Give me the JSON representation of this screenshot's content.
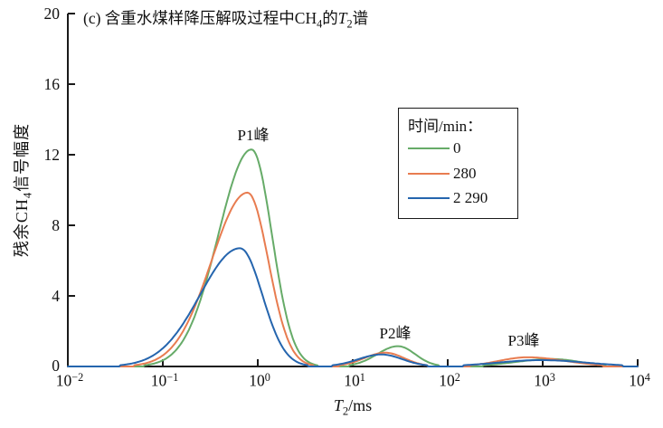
{
  "title": {
    "part1": "(c) 含重水煤样降压解吸过程中",
    "ch": "CH",
    "ch_sub": "4",
    "part2": "的",
    "t": "T",
    "t_sub": "2",
    "part3": "谱"
  },
  "y_axis": {
    "label_part1": "残余",
    "label_ch": "CH",
    "label_ch_sub": "4",
    "label_part2": "信号幅度",
    "tick_labels": [
      "20",
      "16",
      "12",
      "8",
      "4",
      "0"
    ]
  },
  "x_axis": {
    "label_t": "T",
    "label_t_sub": "2",
    "label_rest": "/ms",
    "ticks": [
      {
        "base": "10",
        "exp": "−2"
      },
      {
        "base": "10",
        "exp": "−1"
      },
      {
        "base": "10",
        "exp": "0"
      },
      {
        "base": "10",
        "exp": "1"
      },
      {
        "base": "10",
        "exp": "2"
      },
      {
        "base": "10",
        "exp": "3"
      },
      {
        "base": "10",
        "exp": "4"
      }
    ]
  },
  "legend": {
    "title": "时间/min：",
    "entries": [
      {
        "label": "0",
        "color": "#66ab68"
      },
      {
        "label": "280",
        "color": "#e87c50"
      },
      {
        "label": "2 290",
        "color": "#2565ae"
      }
    ]
  },
  "peak_labels": [
    {
      "text": "P1峰"
    },
    {
      "text": "P2峰"
    },
    {
      "text": "P3峰"
    }
  ],
  "chart_data": {
    "type": "line",
    "title": "(c) 含重水煤样降压解吸过程中CH4的T2谱",
    "xlabel": "T2/ms",
    "ylabel": "残余CH4信号幅度",
    "x_scale": "log10",
    "xlim": [
      0.01,
      10000
    ],
    "ylim": [
      0,
      20
    ],
    "y_ticks": [
      0,
      4,
      8,
      12,
      16,
      20
    ],
    "x_tick_values": [
      0.01,
      0.1,
      1,
      10,
      100,
      1000,
      10000
    ],
    "grid": false,
    "legend_title": "时间/min:",
    "legend_position": "upper right",
    "axis_color": "#1a1a1a",
    "series": [
      {
        "name": "0",
        "unit": "min",
        "color": "#66ab68",
        "peaks": [
          {
            "label": "P1峰",
            "center_ms": 0.86,
            "amplitude": 12.3,
            "sigma_left_log": 0.35,
            "sigma_right_log": 0.215
          },
          {
            "label": "P2峰",
            "center_ms": 30,
            "amplitude": 1.15,
            "sigma_left_log": 0.22,
            "sigma_right_log": 0.18
          },
          {
            "label": "P3峰",
            "center_ms": 1250,
            "amplitude": 0.42,
            "sigma_left_log": 0.38,
            "sigma_right_log": 0.3
          }
        ]
      },
      {
        "name": "280",
        "unit": "min",
        "color": "#e87c50",
        "peaks": [
          {
            "label": "P1峰",
            "center_ms": 0.78,
            "amplitude": 9.85,
            "sigma_left_log": 0.38,
            "sigma_right_log": 0.22
          },
          {
            "label": "P2峰",
            "center_ms": 22,
            "amplitude": 0.78,
            "sigma_left_log": 0.22,
            "sigma_right_log": 0.2
          },
          {
            "label": "P3峰",
            "center_ms": 690,
            "amplitude": 0.52,
            "sigma_left_log": 0.3,
            "sigma_right_log": 0.4
          }
        ]
      },
      {
        "name": "2 290",
        "unit": "min",
        "color": "#2565ae",
        "peaks": [
          {
            "label": "P1峰",
            "center_ms": 0.65,
            "amplitude": 6.7,
            "sigma_left_log": 0.42,
            "sigma_right_log": 0.235
          },
          {
            "label": "P2峰",
            "center_ms": 20,
            "amplitude": 0.68,
            "sigma_left_log": 0.24,
            "sigma_right_log": 0.22
          },
          {
            "label": "P3峰",
            "center_ms": 950,
            "amplitude": 0.36,
            "sigma_left_log": 0.45,
            "sigma_right_log": 0.48
          }
        ]
      }
    ]
  }
}
